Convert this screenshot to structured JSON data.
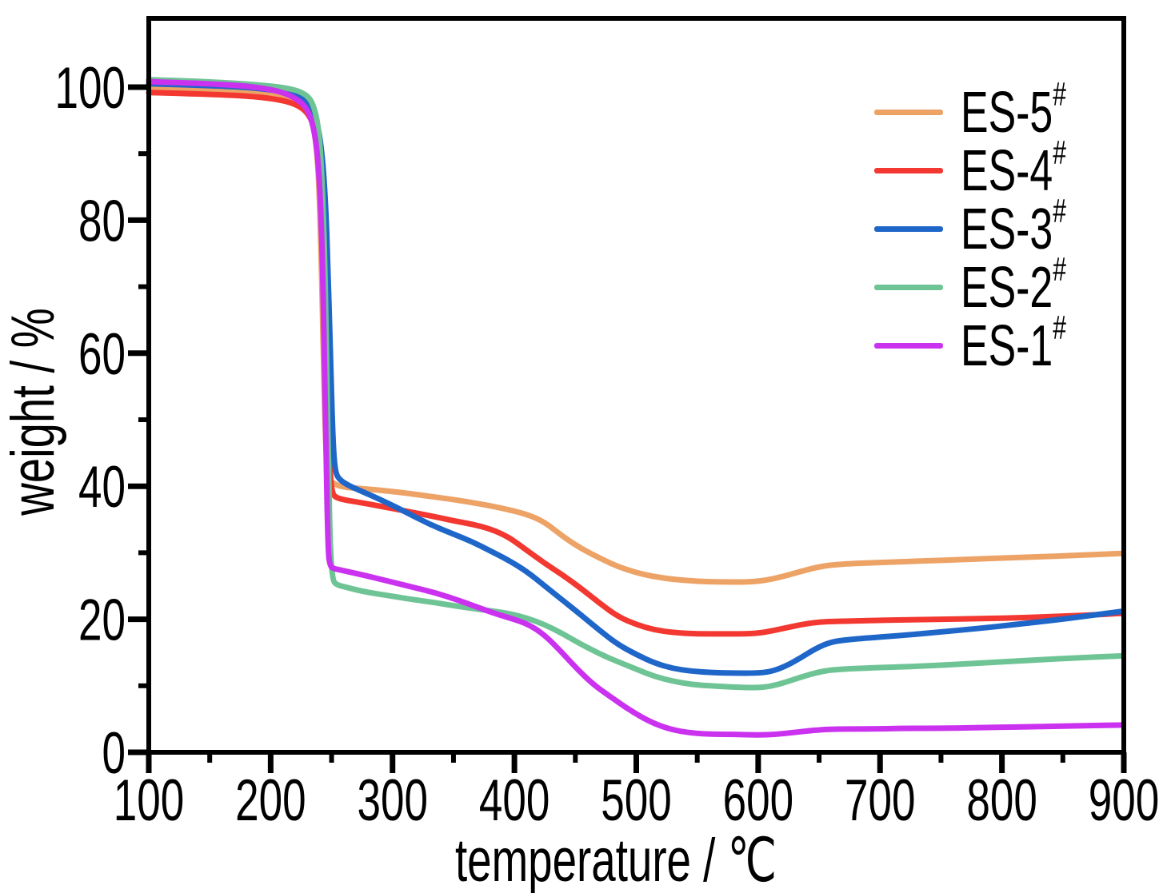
{
  "chart_data": {
    "type": "line",
    "title": "",
    "xlabel": "temperature / ℃",
    "ylabel": "weight / %",
    "xlim": [
      100,
      900
    ],
    "ylim": [
      0,
      110
    ],
    "x_ticks": [
      100,
      200,
      300,
      400,
      500,
      600,
      700,
      800,
      900
    ],
    "x_minor_ticks": [
      150,
      250,
      350,
      450,
      550,
      650,
      750,
      850
    ],
    "y_ticks": [
      0,
      20,
      40,
      60,
      80,
      100
    ],
    "y_minor_ticks": [
      10,
      30,
      50,
      70,
      90
    ],
    "grid": false,
    "legend_position": "upper right",
    "frame_color": "#000000",
    "series": [
      {
        "label": "ES-5",
        "superscript": "#",
        "color": "#EDA266",
        "points": [
          [
            100,
            99.8
          ],
          [
            140,
            99.6
          ],
          [
            180,
            99.3
          ],
          [
            210,
            98.8
          ],
          [
            225,
            98.0
          ],
          [
            231,
            96.5
          ],
          [
            236,
            93.5
          ],
          [
            239,
            88
          ],
          [
            241,
            78
          ],
          [
            243,
            62
          ],
          [
            244.5,
            50
          ],
          [
            246,
            43
          ],
          [
            249,
            40.8
          ],
          [
            252,
            40.4
          ],
          [
            258,
            39.9
          ],
          [
            270,
            39.7
          ],
          [
            290,
            39.4
          ],
          [
            310,
            39.0
          ],
          [
            330,
            38.5
          ],
          [
            350,
            38.0
          ],
          [
            370,
            37.4
          ],
          [
            390,
            36.7
          ],
          [
            410,
            35.8
          ],
          [
            425,
            34.6
          ],
          [
            440,
            32.4
          ],
          [
            455,
            30.6
          ],
          [
            470,
            29.2
          ],
          [
            485,
            27.9
          ],
          [
            500,
            27.0
          ],
          [
            515,
            26.4
          ],
          [
            530,
            26.0
          ],
          [
            550,
            25.7
          ],
          [
            570,
            25.6
          ],
          [
            590,
            25.6
          ],
          [
            605,
            25.8
          ],
          [
            620,
            26.4
          ],
          [
            635,
            27.2
          ],
          [
            650,
            27.9
          ],
          [
            662,
            28.2
          ],
          [
            680,
            28.4
          ],
          [
            710,
            28.6
          ],
          [
            740,
            28.8
          ],
          [
            770,
            29.0
          ],
          [
            800,
            29.2
          ],
          [
            830,
            29.4
          ],
          [
            860,
            29.6
          ],
          [
            899,
            29.9
          ]
        ]
      },
      {
        "label": "ES-4",
        "superscript": "#",
        "color": "#F23830",
        "points": [
          [
            100,
            99.2
          ],
          [
            140,
            99.0
          ],
          [
            180,
            98.7
          ],
          [
            205,
            98.2
          ],
          [
            220,
            97.5
          ],
          [
            230,
            96.3
          ],
          [
            236,
            94.0
          ],
          [
            240,
            89.5
          ],
          [
            243,
            81
          ],
          [
            245,
            68
          ],
          [
            247,
            52
          ],
          [
            249,
            41
          ],
          [
            251,
            38.7
          ],
          [
            255,
            38.2
          ],
          [
            262,
            37.9
          ],
          [
            275,
            37.5
          ],
          [
            290,
            37.0
          ],
          [
            310,
            36.3
          ],
          [
            330,
            35.6
          ],
          [
            350,
            34.8
          ],
          [
            365,
            34.3
          ],
          [
            380,
            33.6
          ],
          [
            395,
            32.4
          ],
          [
            410,
            30.4
          ],
          [
            425,
            28.4
          ],
          [
            440,
            26.6
          ],
          [
            455,
            24.6
          ],
          [
            470,
            22.4
          ],
          [
            485,
            20.4
          ],
          [
            500,
            19.2
          ],
          [
            515,
            18.4
          ],
          [
            530,
            18.0
          ],
          [
            550,
            17.8
          ],
          [
            570,
            17.8
          ],
          [
            590,
            17.8
          ],
          [
            605,
            18.0
          ],
          [
            620,
            18.6
          ],
          [
            635,
            19.2
          ],
          [
            650,
            19.6
          ],
          [
            665,
            19.7
          ],
          [
            690,
            19.8
          ],
          [
            720,
            19.9
          ],
          [
            750,
            20.0
          ],
          [
            780,
            20.1
          ],
          [
            810,
            20.2
          ],
          [
            840,
            20.4
          ],
          [
            870,
            20.6
          ],
          [
            899,
            20.9
          ]
        ]
      },
      {
        "label": "ES-3",
        "superscript": "#",
        "color": "#1F66C9",
        "points": [
          [
            100,
            100.5
          ],
          [
            140,
            100.3
          ],
          [
            180,
            100.0
          ],
          [
            210,
            99.4
          ],
          [
            225,
            98.5
          ],
          [
            233,
            97.2
          ],
          [
            238,
            95.0
          ],
          [
            242,
            90.5
          ],
          [
            245,
            83
          ],
          [
            247,
            73
          ],
          [
            249,
            60
          ],
          [
            251,
            47
          ],
          [
            253,
            42
          ],
          [
            257,
            40.9
          ],
          [
            264,
            40.1
          ],
          [
            275,
            39.2
          ],
          [
            290,
            38.0
          ],
          [
            310,
            36.2
          ],
          [
            330,
            34.3
          ],
          [
            350,
            32.8
          ],
          [
            365,
            31.7
          ],
          [
            380,
            30.3
          ],
          [
            395,
            28.9
          ],
          [
            410,
            27.2
          ],
          [
            425,
            25.0
          ],
          [
            440,
            22.8
          ],
          [
            455,
            20.6
          ],
          [
            470,
            18.3
          ],
          [
            485,
            16.2
          ],
          [
            500,
            14.7
          ],
          [
            515,
            13.4
          ],
          [
            530,
            12.6
          ],
          [
            545,
            12.2
          ],
          [
            560,
            12.0
          ],
          [
            580,
            11.9
          ],
          [
            598,
            11.9
          ],
          [
            610,
            12.1
          ],
          [
            622,
            12.9
          ],
          [
            635,
            14.2
          ],
          [
            648,
            15.7
          ],
          [
            660,
            16.6
          ],
          [
            672,
            16.9
          ],
          [
            690,
            17.2
          ],
          [
            720,
            17.6
          ],
          [
            750,
            18.1
          ],
          [
            780,
            18.6
          ],
          [
            810,
            19.2
          ],
          [
            840,
            19.8
          ],
          [
            870,
            20.5
          ],
          [
            899,
            21.2
          ]
        ]
      },
      {
        "label": "ES-2",
        "superscript": "#",
        "color": "#6FC495",
        "points": [
          [
            100,
            101.1
          ],
          [
            140,
            100.9
          ],
          [
            180,
            100.5
          ],
          [
            215,
            99.9
          ],
          [
            230,
            98.9
          ],
          [
            236,
            97.0
          ],
          [
            240,
            93.0
          ],
          [
            242.5,
            85
          ],
          [
            244.5,
            73
          ],
          [
            246,
            58
          ],
          [
            247.5,
            42
          ],
          [
            249,
            30
          ],
          [
            251,
            25.8
          ],
          [
            254,
            25.2
          ],
          [
            260,
            24.9
          ],
          [
            275,
            24.2
          ],
          [
            295,
            23.6
          ],
          [
            315,
            23.0
          ],
          [
            335,
            22.5
          ],
          [
            355,
            21.9
          ],
          [
            375,
            21.4
          ],
          [
            395,
            20.9
          ],
          [
            410,
            20.2
          ],
          [
            425,
            19.2
          ],
          [
            440,
            17.8
          ],
          [
            455,
            16.2
          ],
          [
            470,
            14.8
          ],
          [
            485,
            13.6
          ],
          [
            500,
            12.5
          ],
          [
            515,
            11.4
          ],
          [
            530,
            10.7
          ],
          [
            545,
            10.2
          ],
          [
            560,
            10.0
          ],
          [
            580,
            9.8
          ],
          [
            598,
            9.7
          ],
          [
            610,
            9.9
          ],
          [
            622,
            10.5
          ],
          [
            635,
            11.3
          ],
          [
            648,
            12.0
          ],
          [
            660,
            12.4
          ],
          [
            680,
            12.6
          ],
          [
            710,
            12.8
          ],
          [
            740,
            13.0
          ],
          [
            770,
            13.3
          ],
          [
            800,
            13.6
          ],
          [
            830,
            13.9
          ],
          [
            860,
            14.2
          ],
          [
            899,
            14.5
          ]
        ]
      },
      {
        "label": "ES-1",
        "superscript": "#",
        "color": "#CB32F0",
        "points": [
          [
            100,
            100.8
          ],
          [
            140,
            100.6
          ],
          [
            180,
            100.2
          ],
          [
            205,
            99.5
          ],
          [
            218,
            98.6
          ],
          [
            228,
            97.3
          ],
          [
            234,
            95.0
          ],
          [
            238,
            91.0
          ],
          [
            241,
            83
          ],
          [
            243,
            70
          ],
          [
            245,
            50
          ],
          [
            247,
            30
          ],
          [
            249,
            27.9
          ],
          [
            252,
            27.6
          ],
          [
            260,
            27.3
          ],
          [
            275,
            26.7
          ],
          [
            295,
            25.8
          ],
          [
            315,
            24.9
          ],
          [
            335,
            24.0
          ],
          [
            355,
            22.8
          ],
          [
            370,
            21.8
          ],
          [
            385,
            20.8
          ],
          [
            398,
            20.1
          ],
          [
            412,
            19.2
          ],
          [
            425,
            17.6
          ],
          [
            438,
            15.2
          ],
          [
            452,
            12.4
          ],
          [
            466,
            10.0
          ],
          [
            480,
            8.2
          ],
          [
            495,
            6.3
          ],
          [
            510,
            4.7
          ],
          [
            525,
            3.6
          ],
          [
            540,
            3.0
          ],
          [
            560,
            2.7
          ],
          [
            580,
            2.7
          ],
          [
            600,
            2.6
          ],
          [
            615,
            2.7
          ],
          [
            630,
            3.0
          ],
          [
            645,
            3.3
          ],
          [
            660,
            3.5
          ],
          [
            690,
            3.5
          ],
          [
            720,
            3.6
          ],
          [
            750,
            3.6
          ],
          [
            780,
            3.7
          ],
          [
            810,
            3.8
          ],
          [
            840,
            3.9
          ],
          [
            870,
            4.0
          ],
          [
            899,
            4.1
          ]
        ]
      }
    ]
  }
}
